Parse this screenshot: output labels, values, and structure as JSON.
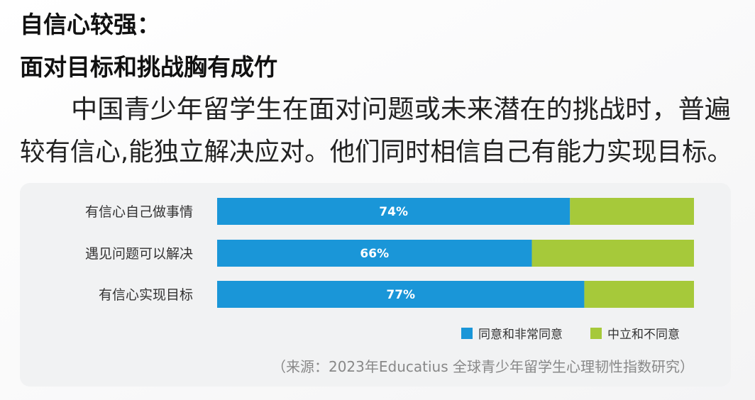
{
  "header": {
    "title_line1": "自信心较强：",
    "title_line2": "面对目标和挑战胸有成竹"
  },
  "paragraph": [
    "中国青少年留学生在面对问题或未来潜在的挑战时，普遍",
    "较有信心,能独立解决应对。他们同时相信自己有能力实现目标。"
  ],
  "chart_data": {
    "type": "bar",
    "orientation": "horizontal",
    "stacked": true,
    "categories": [
      "有信心自己做事情",
      "遇见问题可以解决",
      "有信心实现目标"
    ],
    "series": [
      {
        "name": "同意和非常同意",
        "color": "#1a96d8",
        "values": [
          74,
          66,
          77
        ],
        "value_labels": [
          "74%",
          "66%",
          "77%"
        ]
      },
      {
        "name": "中立和不同意",
        "color": "#a6c93a",
        "values": [
          26,
          34,
          23
        ]
      }
    ],
    "xlim": [
      0,
      100
    ],
    "source": "（来源：2023年Educatius 全球青少年留学生心理韧性指数研究）"
  }
}
